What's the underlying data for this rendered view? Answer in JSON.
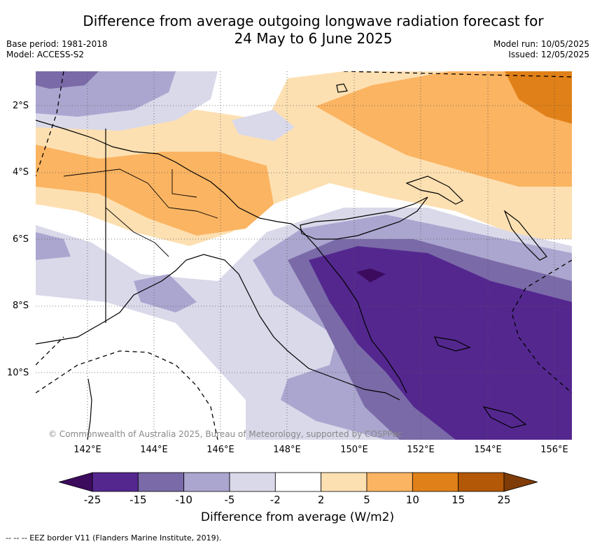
{
  "header": {
    "title_line1": "Difference from average outgoing longwave radiation forecast for",
    "title_line2": "24 May to 6 June 2025",
    "base_period": "Base period: 1981-2018",
    "model": "Model: ACCESS-S2",
    "model_run": "Model run: 10/05/2025",
    "issued": "Issued: 12/05/2025"
  },
  "map": {
    "lat_labels": [
      "2°S",
      "4°S",
      "6°S",
      "8°S",
      "10°S"
    ],
    "lon_labels": [
      "142°E",
      "144°E",
      "146°E",
      "148°E",
      "150°E",
      "152°E",
      "154°E",
      "156°E"
    ],
    "copyright": "© Commonwealth of Australia 2025, Bureau of Meteorology, supported by COSPPac",
    "coastline_color": "#000000",
    "eez_border_style": "dashed"
  },
  "legend": {
    "ticks": [
      "-25",
      "-15",
      "-10",
      "-5",
      "-2",
      "2",
      "5",
      "10",
      "15",
      "25"
    ],
    "colors": [
      "#3d0b5e",
      "#54278f",
      "#7a6aa8",
      "#aba6cf",
      "#d9d9ea",
      "#ffffff",
      "#fde0b2",
      "#fbb462",
      "#e08018",
      "#b35806",
      "#7f3b08"
    ],
    "title": "Difference from average (W/m2)"
  },
  "footnote": "-- -- -- EEZ border V11 (Flanders Marine Institute, 2019)."
}
